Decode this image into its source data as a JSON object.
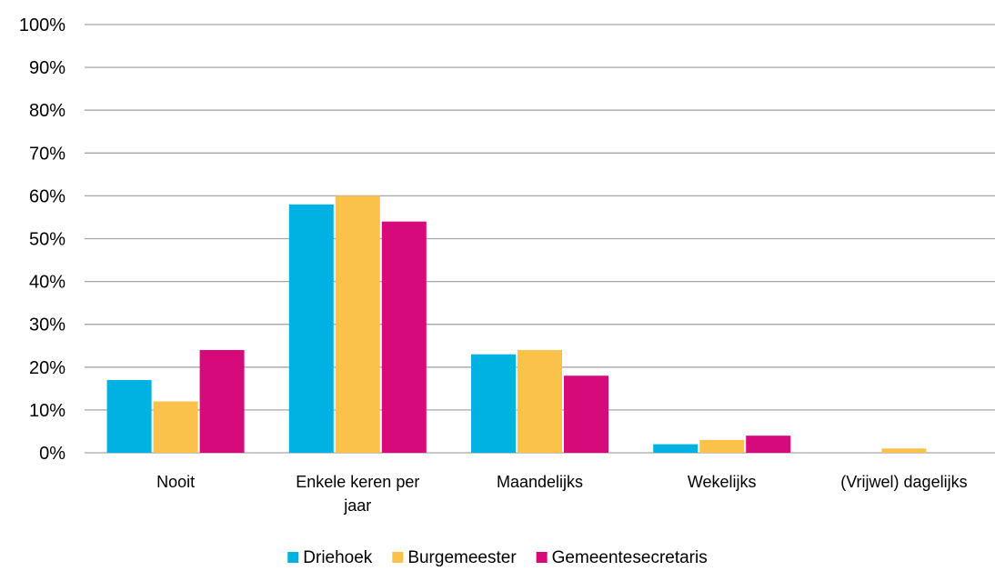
{
  "chart_data": {
    "type": "bar",
    "title": "",
    "xlabel": "",
    "ylabel": "",
    "categories": [
      [
        "Nooit"
      ],
      [
        "Enkele keren per",
        "jaar"
      ],
      [
        "Maandelijks"
      ],
      [
        "Wekelijks"
      ],
      [
        "(Vrijwel) dagelijks"
      ]
    ],
    "series": [
      {
        "name": "Driehoek",
        "color": "#00B2E2",
        "values": [
          17,
          58,
          23,
          2,
          0
        ]
      },
      {
        "name": "Burgemeester",
        "color": "#FAC24A",
        "values": [
          12,
          60,
          24,
          3,
          1
        ]
      },
      {
        "name": "Gemeentesecretaris",
        "color": "#D70A7B",
        "values": [
          24,
          54,
          18,
          4,
          0
        ]
      }
    ],
    "ylim": [
      0,
      100
    ],
    "yticks": [
      "0%",
      "10%",
      "20%",
      "30%",
      "40%",
      "50%",
      "60%",
      "70%",
      "80%",
      "90%",
      "100%"
    ],
    "grid": true,
    "legend_position": "bottom"
  }
}
